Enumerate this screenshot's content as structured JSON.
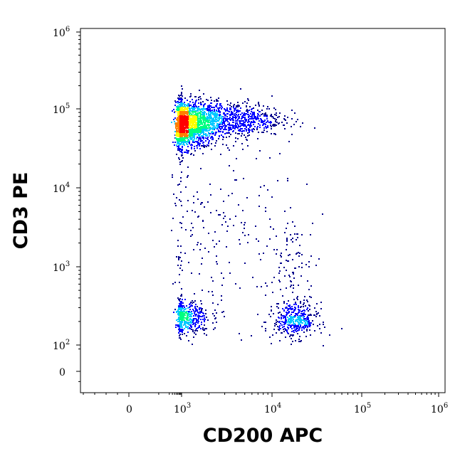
{
  "chart_data": {
    "type": "scatter",
    "style": "density-dot-plot",
    "title": "",
    "xlabel": "CD200 APC",
    "ylabel": "CD3 PE",
    "x_scale": "biexponential",
    "y_scale": "biexponential",
    "xlim": [
      -200,
      1000000
    ],
    "ylim": [
      -80,
      1000000
    ],
    "x_ticks": [
      {
        "value": 0,
        "base": "0",
        "exp": ""
      },
      {
        "value": 1000,
        "base": "10",
        "exp": "3"
      },
      {
        "value": 10000,
        "base": "10",
        "exp": "4"
      },
      {
        "value": 100000,
        "base": "10",
        "exp": "5"
      },
      {
        "value": 1000000,
        "base": "10",
        "exp": "6"
      }
    ],
    "y_ticks": [
      {
        "value": 0,
        "base": "0",
        "exp": ""
      },
      {
        "value": 100,
        "base": "10",
        "exp": "2"
      },
      {
        "value": 1000,
        "base": "10",
        "exp": "3"
      },
      {
        "value": 10000,
        "base": "10",
        "exp": "4"
      },
      {
        "value": 100000,
        "base": "10",
        "exp": "5"
      },
      {
        "value": 1000000,
        "base": "10",
        "exp": "6"
      }
    ],
    "grid": false,
    "legend": "none",
    "density_colors": [
      "#00008b",
      "#0000ff",
      "#00c8ff",
      "#00ff80",
      "#ffff00",
      "#ff8000",
      "#ff0000"
    ],
    "populations": [
      {
        "center": [
          1100,
          65000
        ],
        "spread_decades": [
          0.17,
          0.15
        ],
        "count": 1800
      },
      {
        "center": [
          3500,
          75000
        ],
        "spread_decades": [
          0.28,
          0.11
        ],
        "count": 750
      },
      {
        "center": [
          1050,
          230
        ],
        "spread_decades": [
          0.14,
          0.11
        ],
        "count": 480
      },
      {
        "center": [
          18000,
          210
        ],
        "spread_decades": [
          0.12,
          0.11
        ],
        "count": 420
      },
      {
        "center": [
          2500,
          2500
        ],
        "spread_decades": [
          0.45,
          0.55
        ],
        "count": 220
      },
      {
        "center": [
          17000,
          1000
        ],
        "spread_decades": [
          0.12,
          0.3
        ],
        "count": 90
      }
    ]
  }
}
